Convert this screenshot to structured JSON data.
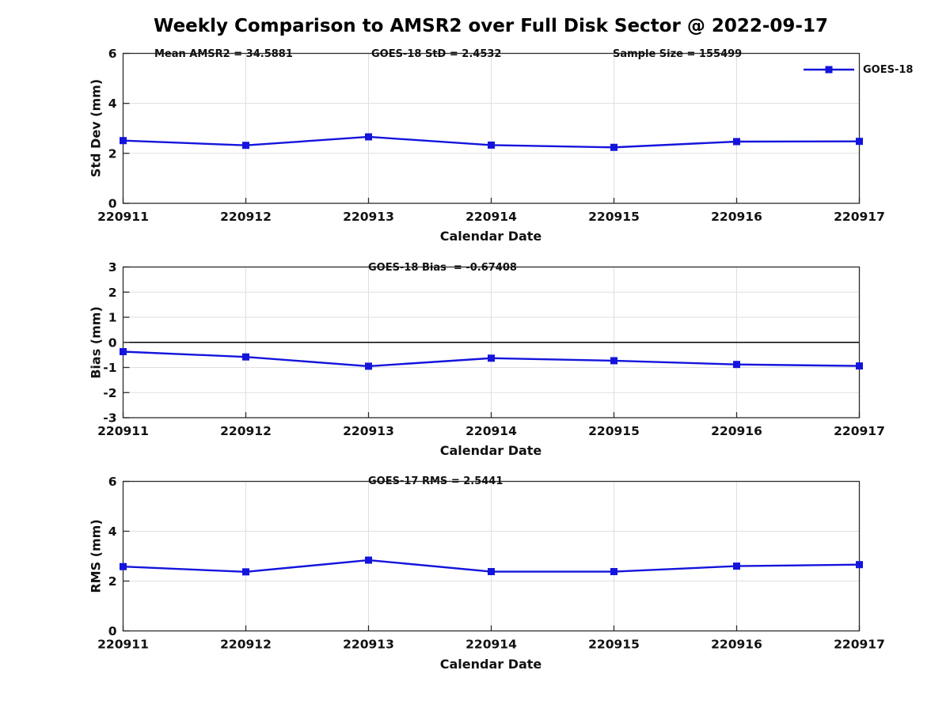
{
  "title": "Weekly Comparison to AMSR2 over Full Disk Sector @ 2022-09-17",
  "legend": {
    "label": "GOES-18",
    "position": "top-right"
  },
  "colors": {
    "series": "#1414dd",
    "grid": "#dfdfdf",
    "axis": "#2b2b2b",
    "zero_line": "#000000",
    "text": "#111111"
  },
  "chart_data": [
    {
      "type": "line",
      "name": "std-dev-panel",
      "ylabel": "Std Dev (mm)",
      "xlabel": "Calendar Date",
      "ylim": [
        0,
        6
      ],
      "yticks": [
        0,
        2,
        4,
        6
      ],
      "grid": true,
      "categories": [
        "220911",
        "220912",
        "220913",
        "220914",
        "220915",
        "220916",
        "220917"
      ],
      "series": [
        {
          "name": "GOES-18",
          "values": [
            2.51,
            2.32,
            2.66,
            2.33,
            2.24,
            2.47,
            2.48
          ]
        }
      ],
      "annotations": [
        "Mean AMSR2 = 34.5881",
        "GOES-18 StD = 2.4532",
        "Sample Size = 155499"
      ]
    },
    {
      "type": "line",
      "name": "bias-panel",
      "ylabel": "Bias (mm)",
      "xlabel": "Calendar Date",
      "ylim": [
        -3,
        3
      ],
      "yticks": [
        -3,
        -2,
        -1,
        0,
        1,
        2,
        3
      ],
      "grid": true,
      "zero_line": true,
      "categories": [
        "220911",
        "220912",
        "220913",
        "220914",
        "220915",
        "220916",
        "220917"
      ],
      "series": [
        {
          "name": "GOES-18",
          "values": [
            -0.37,
            -0.58,
            -0.95,
            -0.63,
            -0.73,
            -0.88,
            -0.94
          ]
        }
      ],
      "annotations": [
        "GOES-18 Bias  = -0.67408"
      ]
    },
    {
      "type": "line",
      "name": "rms-panel",
      "ylabel": "RMS (mm)",
      "xlabel": "Calendar Date",
      "ylim": [
        0,
        6
      ],
      "yticks": [
        0,
        2,
        4,
        6
      ],
      "grid": true,
      "categories": [
        "220911",
        "220912",
        "220913",
        "220914",
        "220915",
        "220916",
        "220917"
      ],
      "series": [
        {
          "name": "GOES-18",
          "values": [
            2.58,
            2.37,
            2.84,
            2.38,
            2.38,
            2.6,
            2.66
          ]
        }
      ],
      "annotations": [
        "GOES-17 RMS = 2.5441"
      ]
    }
  ]
}
